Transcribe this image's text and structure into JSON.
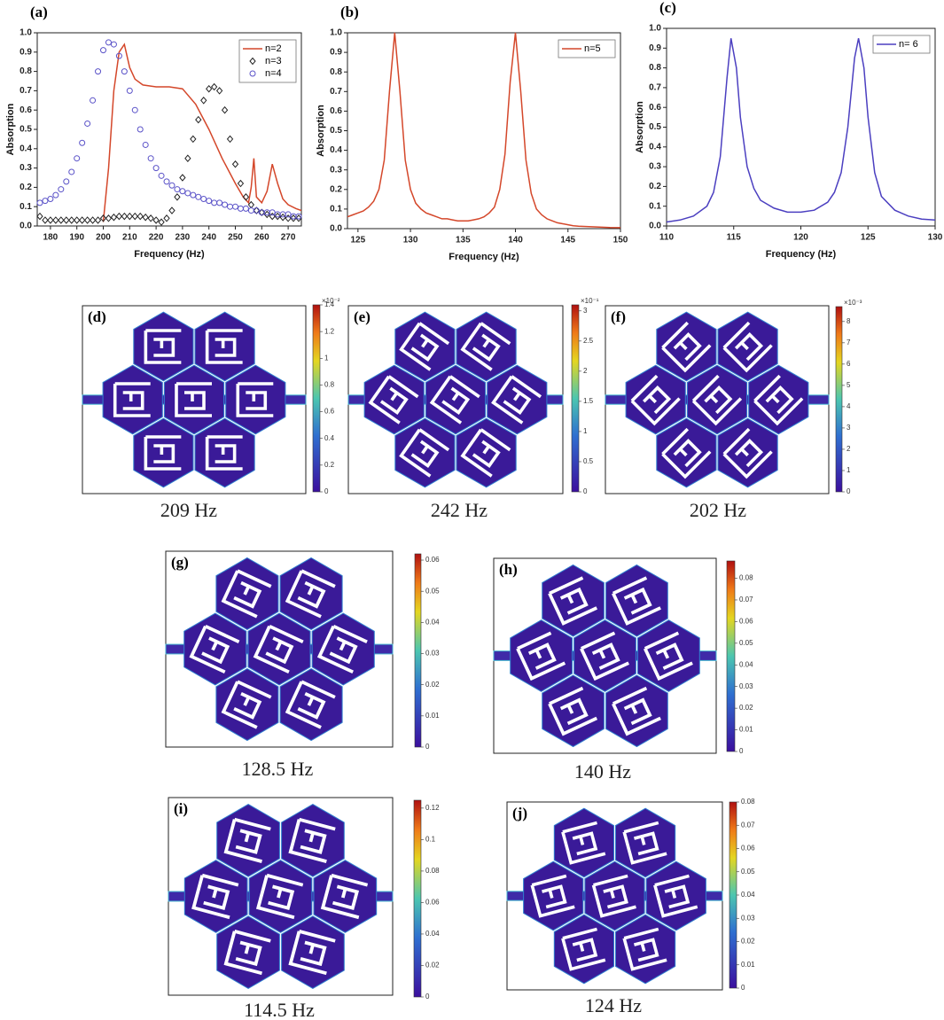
{
  "chart_data": [
    {
      "type": "line",
      "label": "(a)",
      "xlabel": "Frequency (Hz)",
      "ylabel": "Absorption",
      "xlim": [
        175,
        275
      ],
      "ylim": [
        0,
        1
      ],
      "xticks": [
        180,
        190,
        200,
        210,
        220,
        230,
        240,
        250,
        260,
        270
      ],
      "yticks": [
        {
          "value": 0,
          "label": "0.0"
        },
        0.1,
        0.2,
        0.3,
        0.4,
        0.5,
        0.6,
        0.7,
        0.8,
        0.9,
        {
          "value": 1,
          "label": "1.0"
        }
      ],
      "legend": "upper right",
      "series": [
        {
          "name": "n=2",
          "color": "#d4472a",
          "style": "line",
          "x": [
            200,
            202,
            204,
            206,
            208,
            210,
            212,
            215,
            220,
            225,
            230,
            235,
            240,
            245,
            250,
            253,
            255,
            256,
            257,
            258,
            260,
            262,
            264,
            266,
            268,
            270,
            273,
            275
          ],
          "values": [
            0.02,
            0.3,
            0.7,
            0.9,
            0.94,
            0.82,
            0.76,
            0.73,
            0.72,
            0.72,
            0.71,
            0.63,
            0.5,
            0.35,
            0.22,
            0.15,
            0.12,
            0.2,
            0.35,
            0.15,
            0.12,
            0.18,
            0.32,
            0.22,
            0.14,
            0.11,
            0.09,
            0.08
          ]
        },
        {
          "name": "n=3",
          "color": "#222222",
          "style": "diamond",
          "x": [
            176,
            178,
            180,
            182,
            184,
            186,
            188,
            190,
            192,
            194,
            196,
            198,
            200,
            202,
            204,
            206,
            208,
            210,
            212,
            214,
            216,
            218,
            220,
            222,
            224,
            226,
            228,
            230,
            232,
            234,
            236,
            238,
            240,
            242,
            244,
            246,
            248,
            250,
            252,
            254,
            256,
            258,
            260,
            262,
            264,
            266,
            268,
            270,
            272,
            274
          ],
          "values": [
            0.05,
            0.03,
            0.03,
            0.03,
            0.03,
            0.03,
            0.03,
            0.03,
            0.03,
            0.03,
            0.03,
            0.03,
            0.04,
            0.04,
            0.045,
            0.05,
            0.05,
            0.05,
            0.05,
            0.05,
            0.045,
            0.04,
            0.03,
            0.02,
            0.04,
            0.08,
            0.15,
            0.25,
            0.35,
            0.45,
            0.55,
            0.65,
            0.71,
            0.72,
            0.7,
            0.6,
            0.45,
            0.32,
            0.22,
            0.15,
            0.11,
            0.08,
            0.07,
            0.06,
            0.05,
            0.05,
            0.045,
            0.04,
            0.04,
            0.04
          ]
        },
        {
          "name": "n=4",
          "color": "#5a52c8",
          "style": "circle",
          "x": [
            176,
            178,
            180,
            182,
            184,
            186,
            188,
            190,
            192,
            194,
            196,
            198,
            200,
            202,
            204,
            206,
            208,
            210,
            212,
            214,
            216,
            218,
            220,
            222,
            224,
            226,
            228,
            230,
            232,
            234,
            236,
            238,
            240,
            242,
            244,
            246,
            248,
            250,
            252,
            254,
            256,
            258,
            260,
            262,
            264,
            266,
            268,
            270,
            272,
            274
          ],
          "values": [
            0.12,
            0.13,
            0.14,
            0.16,
            0.19,
            0.23,
            0.28,
            0.35,
            0.43,
            0.53,
            0.65,
            0.8,
            0.91,
            0.95,
            0.94,
            0.88,
            0.8,
            0.7,
            0.6,
            0.5,
            0.42,
            0.35,
            0.3,
            0.26,
            0.23,
            0.21,
            0.19,
            0.18,
            0.17,
            0.16,
            0.15,
            0.14,
            0.13,
            0.12,
            0.12,
            0.11,
            0.1,
            0.1,
            0.09,
            0.09,
            0.08,
            0.08,
            0.07,
            0.07,
            0.07,
            0.06,
            0.06,
            0.06,
            0.05,
            0.05
          ]
        }
      ]
    },
    {
      "type": "line",
      "label": "(b)",
      "xlabel": "Frequency (Hz)",
      "ylabel": "Absorption",
      "xlim": [
        124,
        150
      ],
      "ylim": [
        0,
        1
      ],
      "xticks": [
        125,
        130,
        135,
        140,
        145,
        150
      ],
      "yticks": [
        {
          "value": 0,
          "label": "0.0"
        },
        0.1,
        0.2,
        0.3,
        0.4,
        0.5,
        0.6,
        0.7,
        0.8,
        0.9,
        {
          "value": 1,
          "label": "1.0"
        }
      ],
      "legend": "upper right",
      "series": [
        {
          "name": "n=5",
          "color": "#d4472a",
          "style": "line",
          "x": [
            124,
            124.5,
            125,
            125.5,
            126,
            126.5,
            127,
            127.5,
            128,
            128.5,
            129,
            129.5,
            130,
            130.5,
            131,
            131.5,
            132,
            132.5,
            133,
            133.5,
            134,
            134.5,
            135,
            135.5,
            136,
            136.5,
            137,
            137.5,
            138,
            138.5,
            139,
            139.5,
            140,
            140.5,
            141,
            141.5,
            142,
            142.5,
            143,
            143.5,
            144,
            144.5,
            145,
            145.5,
            146,
            147,
            148,
            149,
            150
          ],
          "values": [
            0.06,
            0.07,
            0.08,
            0.09,
            0.11,
            0.14,
            0.2,
            0.35,
            0.7,
            1,
            0.7,
            0.35,
            0.2,
            0.13,
            0.1,
            0.08,
            0.07,
            0.06,
            0.05,
            0.05,
            0.045,
            0.04,
            0.04,
            0.04,
            0.045,
            0.05,
            0.06,
            0.08,
            0.11,
            0.2,
            0.38,
            0.75,
            1,
            0.7,
            0.35,
            0.18,
            0.1,
            0.07,
            0.05,
            0.04,
            0.03,
            0.025,
            0.02,
            0.015,
            0.012,
            0.01,
            0.008,
            0.006,
            0.005
          ]
        }
      ]
    },
    {
      "type": "line",
      "label": "(c)",
      "xlabel": "Frequency (Hz)",
      "ylabel": "Absorption",
      "xlim": [
        110,
        130
      ],
      "ylim": [
        0,
        1
      ],
      "xticks": [
        110,
        115,
        120,
        125,
        130
      ],
      "yticks": [
        {
          "value": 0,
          "label": "0.0"
        },
        0.1,
        0.2,
        0.3,
        0.4,
        0.5,
        0.6,
        0.7,
        0.8,
        0.9,
        {
          "value": 1,
          "label": "1.0"
        }
      ],
      "legend": "upper right",
      "series": [
        {
          "name": "n= 6",
          "color": "#4b3fc0",
          "style": "line",
          "x": [
            110,
            111,
            112,
            113,
            113.5,
            114,
            114.5,
            114.8,
            115.2,
            115.5,
            116,
            116.5,
            117,
            118,
            119,
            120,
            121,
            122,
            122.5,
            123,
            123.5,
            124,
            124.3,
            124.7,
            125,
            125.5,
            126,
            127,
            128,
            129,
            130
          ],
          "values": [
            0.02,
            0.03,
            0.05,
            0.1,
            0.17,
            0.35,
            0.75,
            0.95,
            0.8,
            0.55,
            0.3,
            0.19,
            0.13,
            0.09,
            0.07,
            0.07,
            0.08,
            0.12,
            0.17,
            0.27,
            0.5,
            0.85,
            0.95,
            0.8,
            0.55,
            0.27,
            0.15,
            0.08,
            0.05,
            0.035,
            0.03
          ]
        }
      ]
    }
  ],
  "panels": [
    {
      "label": "(d)",
      "caption": "209 Hz",
      "colorbar": {
        "lim": [
          0,
          1.4
        ],
        "ticks": [
          0,
          0.2,
          0.4,
          0.6,
          0.8,
          1,
          1.2,
          1.4
        ],
        "exponent": "×10⁻²"
      }
    },
    {
      "label": "(e)",
      "caption": "242 Hz",
      "colorbar": {
        "lim": [
          0,
          3.1
        ],
        "ticks": [
          0,
          0.5,
          1,
          1.5,
          2,
          2.5,
          3
        ],
        "exponent": "×10⁻¹"
      }
    },
    {
      "label": "(f)",
      "caption": "202 Hz",
      "colorbar": {
        "lim": [
          0,
          8.7
        ],
        "ticks": [
          0,
          1,
          2,
          3,
          4,
          5,
          6,
          7,
          8
        ],
        "exponent": "×10⁻³"
      }
    },
    {
      "label": "(g)",
      "caption": "128.5 Hz",
      "colorbar": {
        "lim": [
          0,
          0.062
        ],
        "ticks": [
          0,
          0.01,
          0.02,
          0.03,
          0.04,
          0.05,
          0.06
        ]
      }
    },
    {
      "label": "(h)",
      "caption": "140 Hz",
      "colorbar": {
        "lim": [
          0,
          0.088
        ],
        "ticks": [
          0,
          0.01,
          0.02,
          0.03,
          0.04,
          0.05,
          0.06,
          0.07,
          0.08
        ]
      }
    },
    {
      "label": "(i)",
      "caption": "114.5 Hz",
      "colorbar": {
        "lim": [
          0,
          0.125
        ],
        "ticks": [
          0,
          0.02,
          0.04,
          0.06,
          0.08,
          0.1,
          0.12
        ]
      }
    },
    {
      "label": "(j)",
      "caption": "124 Hz",
      "colorbar": {
        "lim": [
          0,
          0.08
        ],
        "ticks": [
          0,
          0.01,
          0.02,
          0.03,
          0.04,
          0.05,
          0.06,
          0.07,
          0.08
        ]
      }
    }
  ]
}
